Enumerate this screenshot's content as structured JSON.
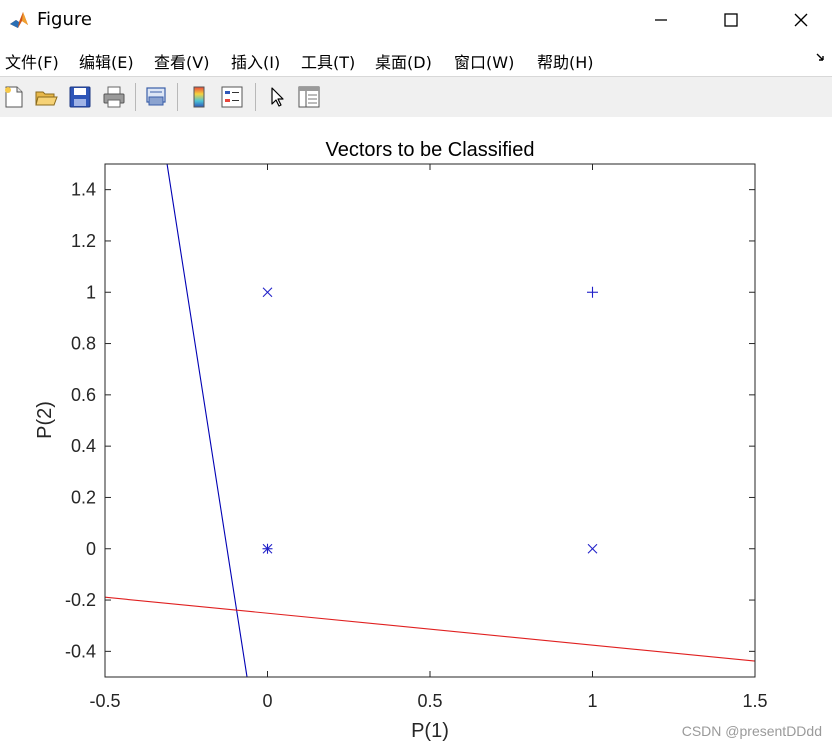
{
  "window": {
    "title": "Figure",
    "icons": [
      "matlab-logo-icon",
      "minimize-icon",
      "maximize-icon",
      "close-icon"
    ]
  },
  "menubar": {
    "items": [
      "文件(F)",
      "编辑(E)",
      "查看(V)",
      "插入(I)",
      "工具(T)",
      "桌面(D)",
      "窗口(W)",
      "帮助(H)"
    ]
  },
  "toolbar": {
    "icons": [
      "new-figure-icon",
      "open-file-icon",
      "save-icon",
      "print-icon",
      "print-preview-icon",
      "colorbar-icon",
      "legend-icon",
      "edit-plot-arrow-icon",
      "property-inspector-icon"
    ]
  },
  "chart_data": {
    "type": "scatter",
    "title": "Vectors to be Classified",
    "xlabel": "P(1)",
    "ylabel": "P(2)",
    "xlim": [
      -0.5,
      1.5
    ],
    "ylim": [
      -0.5,
      1.5
    ],
    "xticks": [
      -0.5,
      0,
      0.5,
      1,
      1.5
    ],
    "xtick_labels": [
      "-0.5",
      "0",
      "0.5",
      "1",
      "1.5"
    ],
    "yticks": [
      -0.4,
      -0.2,
      0,
      0.2,
      0.4,
      0.6,
      0.8,
      1,
      1.2,
      1.4
    ],
    "ytick_labels": [
      "-0.4",
      "-0.2",
      "0",
      "0.2",
      "0.4",
      "0.6",
      "0.8",
      "1",
      "1.2",
      "1.4"
    ],
    "grid": false,
    "marker_color": "#1f1fc8",
    "points": [
      {
        "x": 0,
        "y": 0,
        "marker": "asterisk"
      },
      {
        "x": 0,
        "y": 1,
        "marker": "x"
      },
      {
        "x": 1,
        "y": 0,
        "marker": "x"
      },
      {
        "x": 1,
        "y": 1,
        "marker": "plus"
      }
    ],
    "lines": [
      {
        "color": "#0000b4",
        "points": [
          [
            -0.309,
            1.5
          ],
          [
            -0.063,
            -0.5
          ]
        ]
      },
      {
        "color": "#e02020",
        "points": [
          [
            -0.5,
            -0.189
          ],
          [
            1.5,
            -0.438
          ]
        ]
      }
    ]
  },
  "watermark": "CSDN @presentDDdd"
}
